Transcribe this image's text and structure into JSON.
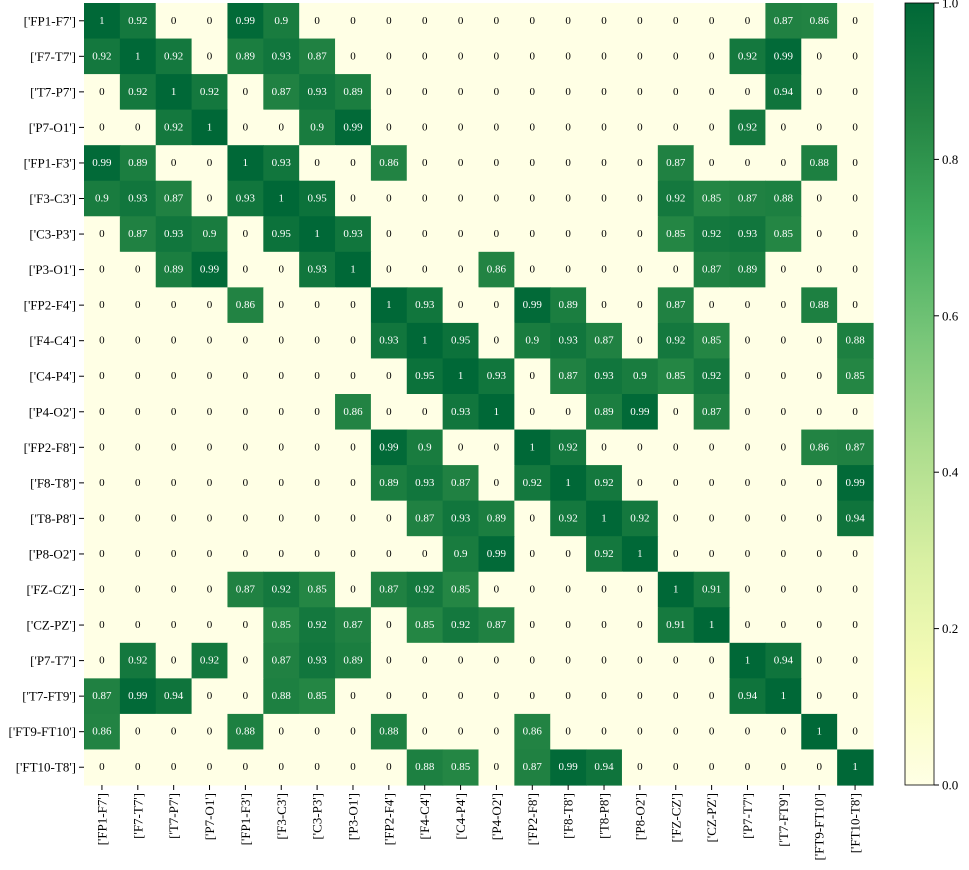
{
  "chart_data": {
    "type": "heatmap",
    "title": "",
    "xlabel": "",
    "ylabel": "",
    "labels": [
      "['FP1-F7']",
      "['F7-T7']",
      "['T7-P7']",
      "['P7-O1']",
      "['FP1-F3']",
      "['F3-C3']",
      "['C3-P3']",
      "['P3-O1']",
      "['FP2-F4']",
      "['F4-C4']",
      "['C4-P4']",
      "['P4-O2']",
      "['FP2-F8']",
      "['F8-T8']",
      "['T8-P8']",
      "['P8-O2']",
      "['FZ-CZ']",
      "['CZ-PZ']",
      "['P7-T7']",
      "['T7-FT9']",
      "['FT9-FT10']",
      "['FT10-T8']"
    ],
    "matrix": [
      [
        1,
        0.92,
        0,
        0,
        0.99,
        0.9,
        0,
        0,
        0,
        0,
        0,
        0,
        0,
        0,
        0,
        0,
        0,
        0,
        0,
        0.87,
        0.86,
        0
      ],
      [
        0.92,
        1,
        0.92,
        0,
        0.89,
        0.93,
        0.87,
        0,
        0,
        0,
        0,
        0,
        0,
        0,
        0,
        0,
        0,
        0,
        0.92,
        0.99,
        0,
        0
      ],
      [
        0,
        0.92,
        1,
        0.92,
        0,
        0.87,
        0.93,
        0.89,
        0,
        0,
        0,
        0,
        0,
        0,
        0,
        0,
        0,
        0,
        0,
        0.94,
        0,
        0
      ],
      [
        0,
        0,
        0.92,
        1,
        0,
        0,
        0.9,
        0.99,
        0,
        0,
        0,
        0,
        0,
        0,
        0,
        0,
        0,
        0,
        0.92,
        0,
        0,
        0
      ],
      [
        0.99,
        0.89,
        0,
        0,
        1,
        0.93,
        0,
        0,
        0.86,
        0,
        0,
        0,
        0,
        0,
        0,
        0,
        0.87,
        0,
        0,
        0,
        0.88,
        0
      ],
      [
        0.9,
        0.93,
        0.87,
        0,
        0.93,
        1,
        0.95,
        0,
        0,
        0,
        0,
        0,
        0,
        0,
        0,
        0,
        0.92,
        0.85,
        0.87,
        0.88,
        0,
        0
      ],
      [
        0,
        0.87,
        0.93,
        0.9,
        0,
        0.95,
        1,
        0.93,
        0,
        0,
        0,
        0,
        0,
        0,
        0,
        0,
        0.85,
        0.92,
        0.93,
        0.85,
        0,
        0
      ],
      [
        0,
        0,
        0.89,
        0.99,
        0,
        0,
        0.93,
        1,
        0,
        0,
        0,
        0.86,
        0,
        0,
        0,
        0,
        0,
        0.87,
        0.89,
        0,
        0,
        0
      ],
      [
        0,
        0,
        0,
        0,
        0.86,
        0,
        0,
        0,
        1,
        0.93,
        0,
        0,
        0.99,
        0.89,
        0,
        0,
        0.87,
        0,
        0,
        0,
        0.88,
        0
      ],
      [
        0,
        0,
        0,
        0,
        0,
        0,
        0,
        0,
        0.93,
        1,
        0.95,
        0,
        0.9,
        0.93,
        0.87,
        0,
        0.92,
        0.85,
        0,
        0,
        0,
        0.88
      ],
      [
        0,
        0,
        0,
        0,
        0,
        0,
        0,
        0,
        0,
        0.95,
        1,
        0.93,
        0,
        0.87,
        0.93,
        0.9,
        0.85,
        0.92,
        0,
        0,
        0,
        0.85
      ],
      [
        0,
        0,
        0,
        0,
        0,
        0,
        0,
        0.86,
        0,
        0,
        0.93,
        1,
        0,
        0,
        0.89,
        0.99,
        0,
        0.87,
        0,
        0,
        0,
        0
      ],
      [
        0,
        0,
        0,
        0,
        0,
        0,
        0,
        0,
        0.99,
        0.9,
        0,
        0,
        1,
        0.92,
        0,
        0,
        0,
        0,
        0,
        0,
        0.86,
        0.87
      ],
      [
        0,
        0,
        0,
        0,
        0,
        0,
        0,
        0,
        0.89,
        0.93,
        0.87,
        0,
        0.92,
        1,
        0.92,
        0,
        0,
        0,
        0,
        0,
        0,
        0.99
      ],
      [
        0,
        0,
        0,
        0,
        0,
        0,
        0,
        0,
        0,
        0.87,
        0.93,
        0.89,
        0,
        0.92,
        1,
        0.92,
        0,
        0,
        0,
        0,
        0,
        0.94
      ],
      [
        0,
        0,
        0,
        0,
        0,
        0,
        0,
        0,
        0,
        0,
        0.9,
        0.99,
        0,
        0,
        0.92,
        1,
        0,
        0,
        0,
        0,
        0,
        0
      ],
      [
        0,
        0,
        0,
        0,
        0.87,
        0.92,
        0.85,
        0,
        0.87,
        0.92,
        0.85,
        0,
        0,
        0,
        0,
        0,
        1,
        0.91,
        0,
        0,
        0,
        0
      ],
      [
        0,
        0,
        0,
        0,
        0,
        0.85,
        0.92,
        0.87,
        0,
        0.85,
        0.92,
        0.87,
        0,
        0,
        0,
        0,
        0.91,
        1,
        0,
        0,
        0,
        0
      ],
      [
        0,
        0.92,
        0,
        0.92,
        0,
        0.87,
        0.93,
        0.89,
        0,
        0,
        0,
        0,
        0,
        0,
        0,
        0,
        0,
        0,
        1,
        0.94,
        0,
        0
      ],
      [
        0.87,
        0.99,
        0.94,
        0,
        0,
        0.88,
        0.85,
        0,
        0,
        0,
        0,
        0,
        0,
        0,
        0,
        0,
        0,
        0,
        0.94,
        1,
        0,
        0
      ],
      [
        0.86,
        0,
        0,
        0,
        0.88,
        0,
        0,
        0,
        0.88,
        0,
        0,
        0,
        0.86,
        0,
        0,
        0,
        0,
        0,
        0,
        0,
        1,
        0
      ],
      [
        0,
        0,
        0,
        0,
        0,
        0,
        0,
        0,
        0,
        0.88,
        0.85,
        0,
        0.87,
        0.99,
        0.94,
        0,
        0,
        0,
        0,
        0,
        0,
        1
      ]
    ],
    "vmin": 0.0,
    "vmax": 1.0,
    "colorbar": {
      "ticks": [
        "0.0",
        "0.2",
        "0.4",
        "0.6",
        "0.8",
        "1.0"
      ],
      "colorscale": [
        "#ffffe5",
        "#f7fcb9",
        "#d9f0a3",
        "#addd8e",
        "#78c679",
        "#41ab5d",
        "#238443",
        "#006837"
      ]
    },
    "legend": "right",
    "grid": false
  }
}
